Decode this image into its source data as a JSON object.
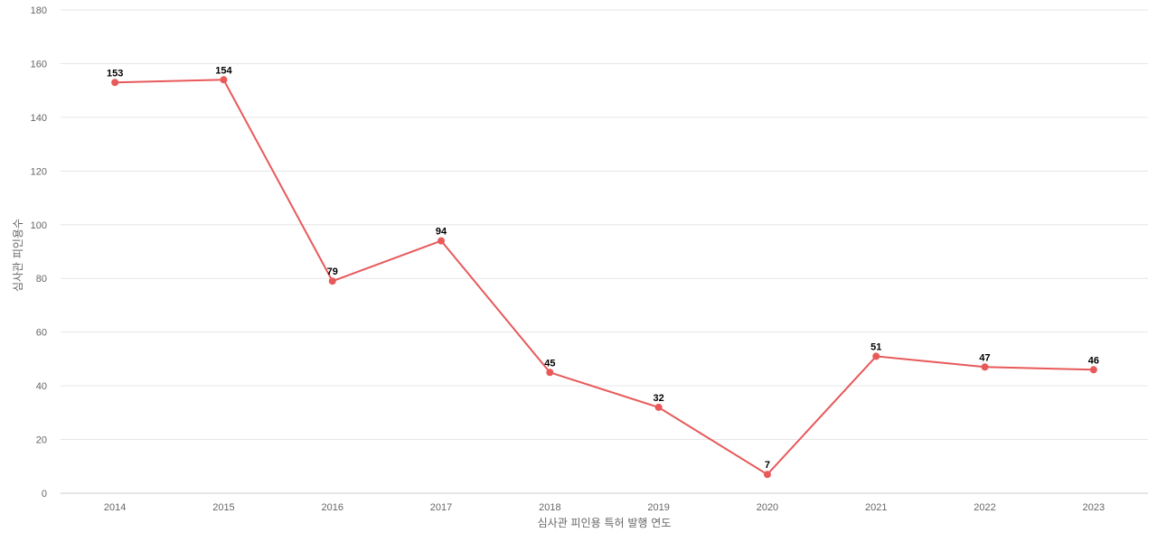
{
  "chart_data": {
    "type": "line",
    "title": "",
    "xlabel": "심사관 피인용 특허 발행 연도",
    "ylabel": "심사관 피인용수",
    "categories": [
      "2014",
      "2015",
      "2016",
      "2017",
      "2018",
      "2019",
      "2020",
      "2021",
      "2022",
      "2023"
    ],
    "series": [
      {
        "values": [
          153,
          154,
          79,
          94,
          45,
          32,
          7,
          51,
          47,
          46
        ],
        "color": "#e8595a"
      }
    ],
    "ylim": [
      0,
      180
    ],
    "yticks": [
      0,
      20,
      40,
      60,
      80,
      100,
      120,
      140,
      160,
      180
    ],
    "grid": true,
    "legend": "none"
  }
}
